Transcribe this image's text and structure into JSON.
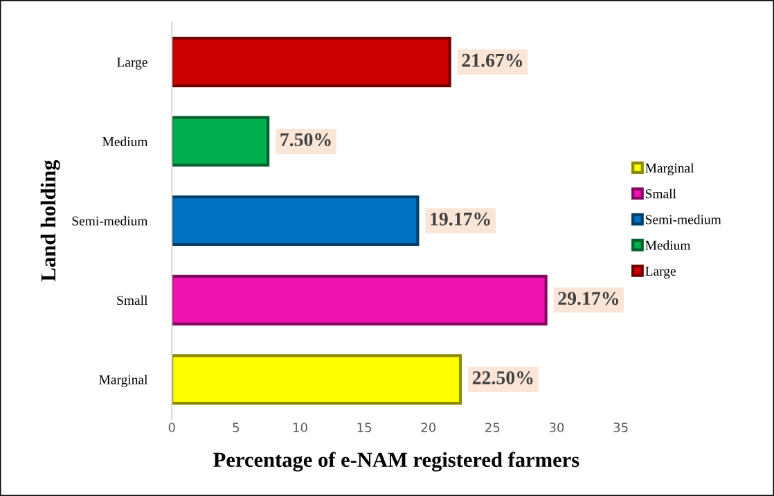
{
  "chart_data": {
    "type": "bar",
    "orientation": "horizontal",
    "xlabel": "Percentage of e-NAM registered farmers",
    "ylabel": "Land holding",
    "categories": [
      "Large",
      "Medium",
      "Semi-medium",
      "Small",
      "Marginal"
    ],
    "series": [
      {
        "name": "Marginal",
        "color": "#ffff00",
        "values": [
          null,
          null,
          null,
          null,
          22.5
        ],
        "value_labels": [
          null,
          null,
          null,
          null,
          "22.50%"
        ]
      },
      {
        "name": "Small",
        "color": "#f012b0",
        "values": [
          null,
          null,
          null,
          29.17,
          null
        ],
        "value_labels": [
          null,
          null,
          null,
          "29.17%",
          null
        ]
      },
      {
        "name": "Semi-medium",
        "color": "#0070c0",
        "values": [
          null,
          null,
          19.17,
          null,
          null
        ],
        "value_labels": [
          null,
          null,
          "19.17%",
          null,
          null
        ]
      },
      {
        "name": "Medium",
        "color": "#00b050",
        "values": [
          null,
          7.5,
          null,
          null,
          null
        ],
        "value_labels": [
          null,
          "7.50%",
          null,
          null,
          null
        ]
      },
      {
        "name": "Large",
        "color": "#cc0000",
        "values": [
          21.67,
          null,
          null,
          null,
          null
        ],
        "value_labels": [
          "21.67%",
          null,
          null,
          null,
          null
        ]
      }
    ],
    "xlim": [
      0,
      35
    ],
    "xticks": [
      0,
      5,
      10,
      15,
      20,
      25,
      30,
      35
    ],
    "grid": false,
    "legend": "right"
  }
}
